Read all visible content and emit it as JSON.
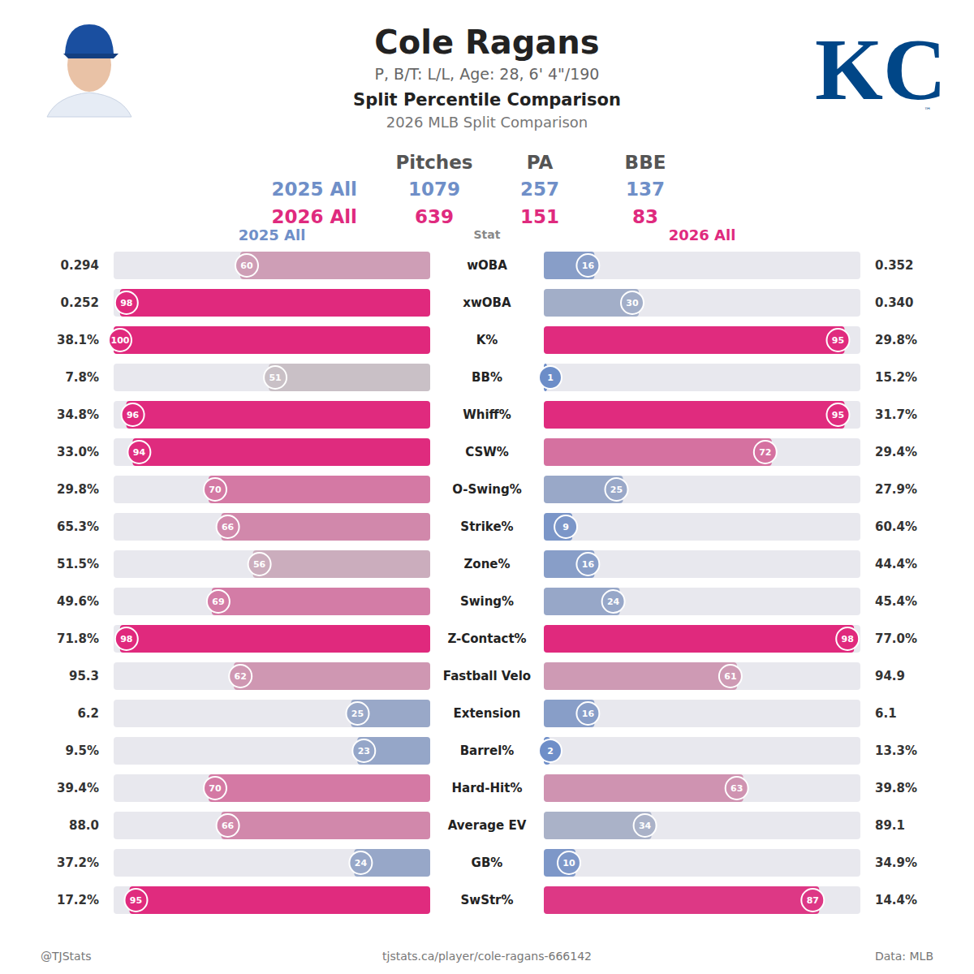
{
  "chart_data": {
    "type": "bar",
    "orientation": "horizontal",
    "data_labels": true,
    "tick_labels": false,
    "title": "Cole Ragans",
    "subtitle": "P, B/T: L/L, Age: 28, 6' 4\"/190",
    "chart_title": "Split Percentile Comparison",
    "chart_subtitle": "2026 MLB Split Comparison",
    "logo": "KC",
    "logo_mark": "™",
    "stat_header": "Stat",
    "summary": {
      "columns": [
        "Pitches",
        "PA",
        "BBE"
      ],
      "rows": [
        {
          "label": "2025 All",
          "values": [
            1079,
            257,
            137
          ]
        },
        {
          "label": "2026 All",
          "values": [
            639,
            151,
            83
          ]
        }
      ]
    },
    "xlim": [
      0,
      100
    ],
    "categories": [
      "wOBA",
      "xwOBA",
      "K%",
      "BB%",
      "Whiff%",
      "CSW%",
      "O-Swing%",
      "Strike%",
      "Zone%",
      "Swing%",
      "Z-Contact%",
      "Fastball Velo",
      "Extension",
      "Barrel%",
      "Hard-Hit%",
      "Average EV",
      "GB%",
      "SwStr%"
    ],
    "series": [
      {
        "name": "2025 All",
        "color": "#6f8fc8",
        "values": [
          60,
          98,
          100,
          51,
          96,
          94,
          70,
          66,
          56,
          69,
          98,
          62,
          25,
          23,
          70,
          66,
          24,
          95
        ],
        "stat_labels": [
          "0.294",
          "0.252",
          "38.1%",
          "7.8%",
          "34.8%",
          "33.0%",
          "29.8%",
          "65.3%",
          "51.5%",
          "49.6%",
          "71.8%",
          "95.3",
          "6.2",
          "9.5%",
          "39.4%",
          "88.0",
          "37.2%",
          "17.2%"
        ]
      },
      {
        "name": "2026 All",
        "color": "#df2a7e",
        "values": [
          16,
          30,
          95,
          1,
          95,
          72,
          25,
          9,
          16,
          24,
          98,
          61,
          16,
          2,
          63,
          34,
          10,
          87
        ],
        "stat_labels": [
          "0.352",
          "0.340",
          "29.8%",
          "15.2%",
          "31.7%",
          "29.4%",
          "27.9%",
          "60.4%",
          "44.4%",
          "45.4%",
          "77.0%",
          "94.9",
          "6.1",
          "13.3%",
          "39.8%",
          "89.1",
          "34.9%",
          "14.4%"
        ]
      }
    ],
    "footer_left": "@TJStats",
    "footer_center": "tjstats.ca/player/cole-ragans-666142",
    "footer_right": "Data: MLB"
  }
}
